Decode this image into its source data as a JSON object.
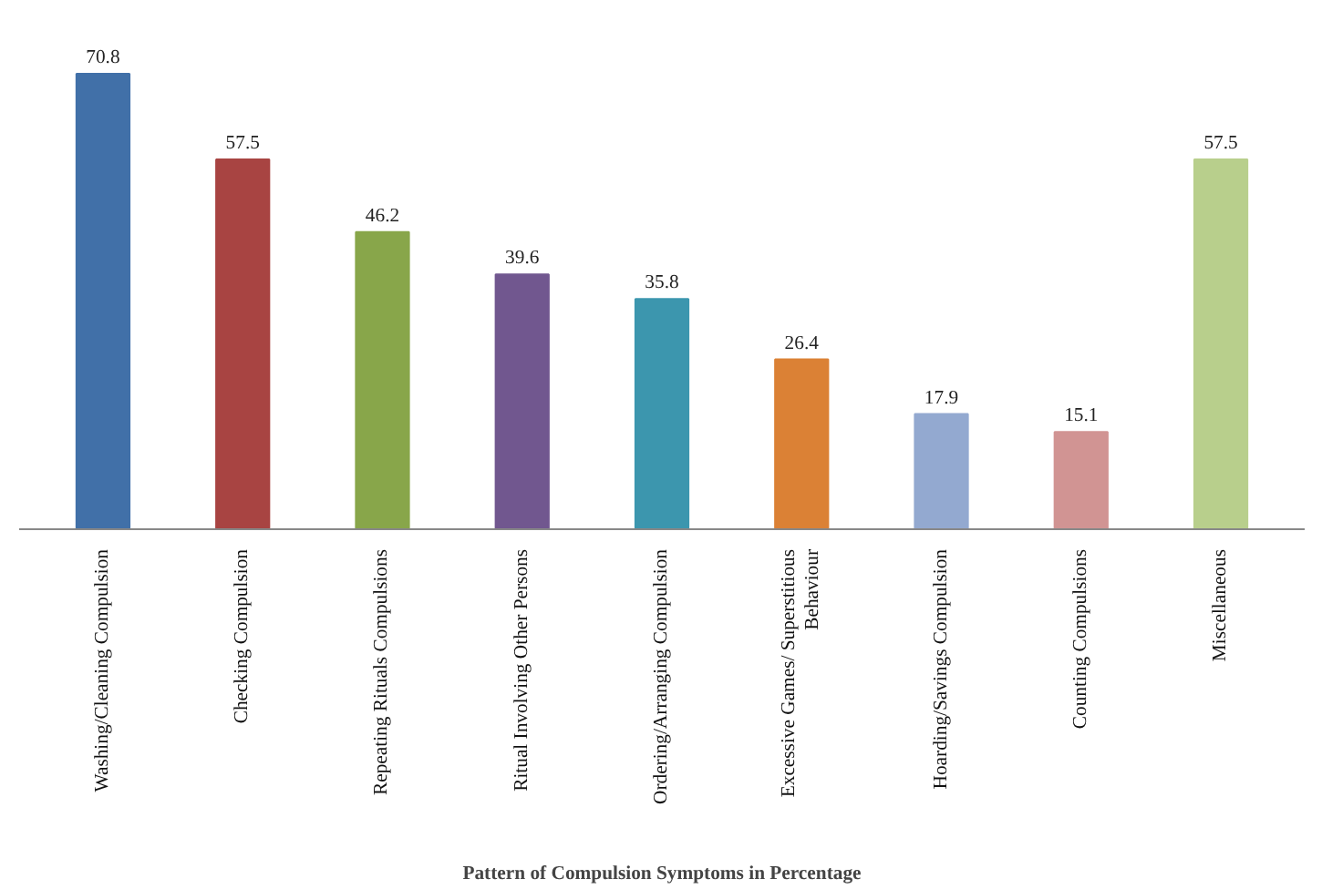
{
  "chart_data": {
    "type": "bar",
    "xlabel": "Pattern of Compulsion Symptoms in Percentage",
    "categories": [
      "Washing/Cleaning Compulsion",
      "Checking Compulsion",
      "Repeating Rituals Compulsions",
      "Ritual Involving Other Persons",
      "Ordering/Arranging Compulsion",
      "Excessive Games/ Superstitious Behaviour",
      "Hoarding/Savings Compulsion",
      "Counting Compulsions",
      "Miscellaneous"
    ],
    "values": [
      70.8,
      57.5,
      46.2,
      39.6,
      35.8,
      26.4,
      17.9,
      15.1,
      57.5
    ],
    "colors": [
      "#4170a8",
      "#a84442",
      "#88a64a",
      "#71578f",
      "#3c96ae",
      "#db8135",
      "#93a9d0",
      "#d19493",
      "#b8cf8c"
    ],
    "data_labels": true,
    "grid": false
  }
}
